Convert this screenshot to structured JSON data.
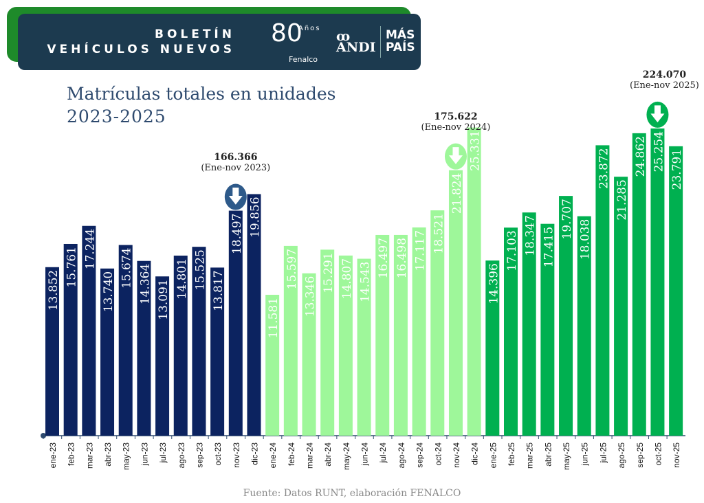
{
  "header": {
    "line1": "BOLETÍN",
    "line2": "VEHÍCULOS NUEVOS",
    "logos": [
      "80 Años Fenalco",
      "ANDI",
      "MÁS PAÍS"
    ]
  },
  "chart_data": {
    "type": "bar",
    "title": "Matrículas totales en unidades\n2023-2025",
    "title_line1": "Matrículas totales en unidades",
    "title_line2": "2023-2025",
    "categories": [
      "ene-23",
      "feb-23",
      "mar-23",
      "abr-23",
      "may-23",
      "jun-23",
      "jul-23",
      "ago-23",
      "sep-23",
      "oct-23",
      "nov-23",
      "dic-23",
      "ene-24",
      "feb-24",
      "mar-24",
      "abr-24",
      "may-24",
      "jun-24",
      "jul-24",
      "ago-24",
      "sep-24",
      "oct-24",
      "nov-24",
      "dic-24",
      "ene-25",
      "feb-25",
      "mar-25",
      "abr-25",
      "may-25",
      "jun-25",
      "jul-25",
      "ago-25",
      "sep-25",
      "oct-25",
      "nov-25"
    ],
    "values": [
      13852,
      15761,
      17244,
      13740,
      15674,
      14364,
      13091,
      14801,
      15525,
      13817,
      18497,
      19856,
      11581,
      15597,
      13346,
      15291,
      14807,
      14543,
      16497,
      16498,
      17117,
      18521,
      21824,
      25331,
      14396,
      17103,
      18347,
      17415,
      19707,
      18038,
      23872,
      21285,
      24862,
      25254,
      23791
    ],
    "labels": [
      "13.852",
      "15.761",
      "17.244",
      "13.740",
      "15.674",
      "14.364",
      "13.091",
      "14.801",
      "15.525",
      "13.817",
      "18.497",
      "19.856",
      "11.581",
      "15.597",
      "13.346",
      "15.291",
      "14.807",
      "14.543",
      "16.497",
      "16.498",
      "17.117",
      "18.521",
      "21.824",
      "25.331",
      "14.396",
      "17.103",
      "18.347",
      "17.415",
      "19.707",
      "18.038",
      "23.872",
      "21.285",
      "24.862",
      "25.254",
      "23.791"
    ],
    "year_colors": {
      "2023": "#0c2360",
      "2024": "#9ef79a",
      "2025": "#00b050"
    },
    "label_colors": {
      "2023": "#ffffff",
      "2024": "#ffffff",
      "2025": "#ffffff"
    },
    "annotations": [
      {
        "total": "166.366",
        "period": "(Ene-nov 2023)",
        "arrow_over": "nov-23",
        "color": "#2e5a8a"
      },
      {
        "total": "175.622",
        "period": "(Ene-nov 2024)",
        "arrow_over": "nov-24",
        "color": "#9ef79a"
      },
      {
        "total": "224.070",
        "period": "(Ene-nov 2025)",
        "arrow_over": "oct-25",
        "color": "#00b050"
      }
    ],
    "ylim": [
      0,
      29600
    ],
    "grid": false
  },
  "source": "Fuente: Datos RUNT, elaboración FENALCO"
}
